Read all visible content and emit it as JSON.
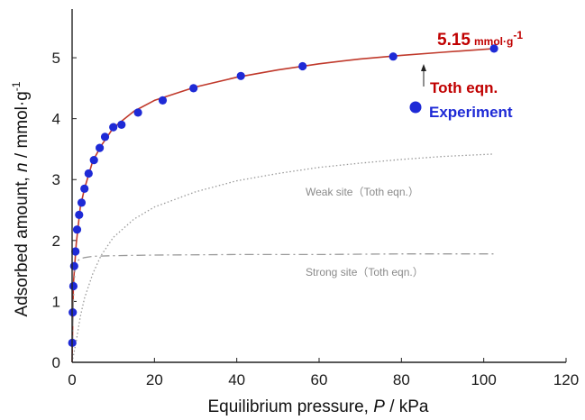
{
  "chart_data": {
    "type": "scatter",
    "title": "",
    "xlabel_prefix": "Equilibrium pressure,",
    "xlabel_var": "P",
    "xlabel_unit": "/ kPa",
    "ylabel_prefix": "Adsorbed amount,",
    "ylabel_var": "n",
    "ylabel_unit": "/ mmol·g",
    "ylabel_unit_sup": "-1",
    "xlim": [
      0,
      120
    ],
    "ylim": [
      0,
      5.8
    ],
    "x_ticks": [
      0,
      20,
      40,
      60,
      80,
      100,
      120
    ],
    "y_ticks": [
      0,
      1,
      2,
      3,
      4,
      5
    ],
    "grid": false,
    "legend_position": "top-right",
    "series": [
      {
        "name": "Experiment",
        "kind": "markers",
        "color": "#1e2ad6",
        "x": [
          0.05,
          0.15,
          0.3,
          0.5,
          0.8,
          1.2,
          1.7,
          2.3,
          3.0,
          4.0,
          5.3,
          6.7,
          8.0,
          10.0,
          12.0,
          16.0,
          22.0,
          29.5,
          41.0,
          56.0,
          78.0,
          102.5
        ],
        "y": [
          0.32,
          0.82,
          1.25,
          1.58,
          1.82,
          2.18,
          2.42,
          2.62,
          2.85,
          3.1,
          3.32,
          3.52,
          3.7,
          3.86,
          3.9,
          4.1,
          4.3,
          4.5,
          4.7,
          4.86,
          5.02,
          5.15
        ]
      },
      {
        "name": "Toth eqn.",
        "kind": "line",
        "color": "#c0392b",
        "x": [
          0,
          0.3,
          1,
          2,
          3,
          5,
          7,
          10,
          15,
          20,
          30,
          40,
          50,
          60,
          70,
          80,
          90,
          102.5
        ],
        "y": [
          0.0,
          1.28,
          1.95,
          2.55,
          2.85,
          3.3,
          3.55,
          3.85,
          4.12,
          4.3,
          4.52,
          4.68,
          4.8,
          4.9,
          4.98,
          5.04,
          5.09,
          5.15
        ]
      },
      {
        "name": "Weak site (Toth eqn.)",
        "kind": "dotted",
        "color": "#9a9a9a",
        "x": [
          0,
          1,
          2,
          3,
          5,
          7,
          10,
          15,
          20,
          30,
          40,
          50,
          60,
          70,
          80,
          90,
          102.5
        ],
        "y": [
          0.0,
          0.35,
          0.75,
          1.05,
          1.45,
          1.75,
          2.05,
          2.35,
          2.55,
          2.8,
          2.98,
          3.1,
          3.2,
          3.27,
          3.33,
          3.38,
          3.42
        ]
      },
      {
        "name": "Strong site (Toth eqn.)",
        "kind": "dashdot",
        "color": "#9a9a9a",
        "x": [
          0,
          0.3,
          0.7,
          1,
          2,
          3,
          5,
          10,
          20,
          40,
          60,
          80,
          102.5
        ],
        "y": [
          0.0,
          1.0,
          1.55,
          1.65,
          1.7,
          1.72,
          1.74,
          1.75,
          1.76,
          1.77,
          1.77,
          1.78,
          1.78
        ]
      }
    ],
    "annotations": {
      "max_value": "5.15",
      "max_unit": "mmol·g",
      "max_unit_sup": "-1",
      "max_color": "#c00000",
      "legend_line_label": "Toth eqn.",
      "legend_line_color": "#c00000",
      "legend_marker_label": "Experiment",
      "legend_marker_color": "#1e2ad6",
      "weak_label": "Weak site（Toth eqn.）",
      "strong_label": "Strong site（Toth eqn.）"
    }
  }
}
